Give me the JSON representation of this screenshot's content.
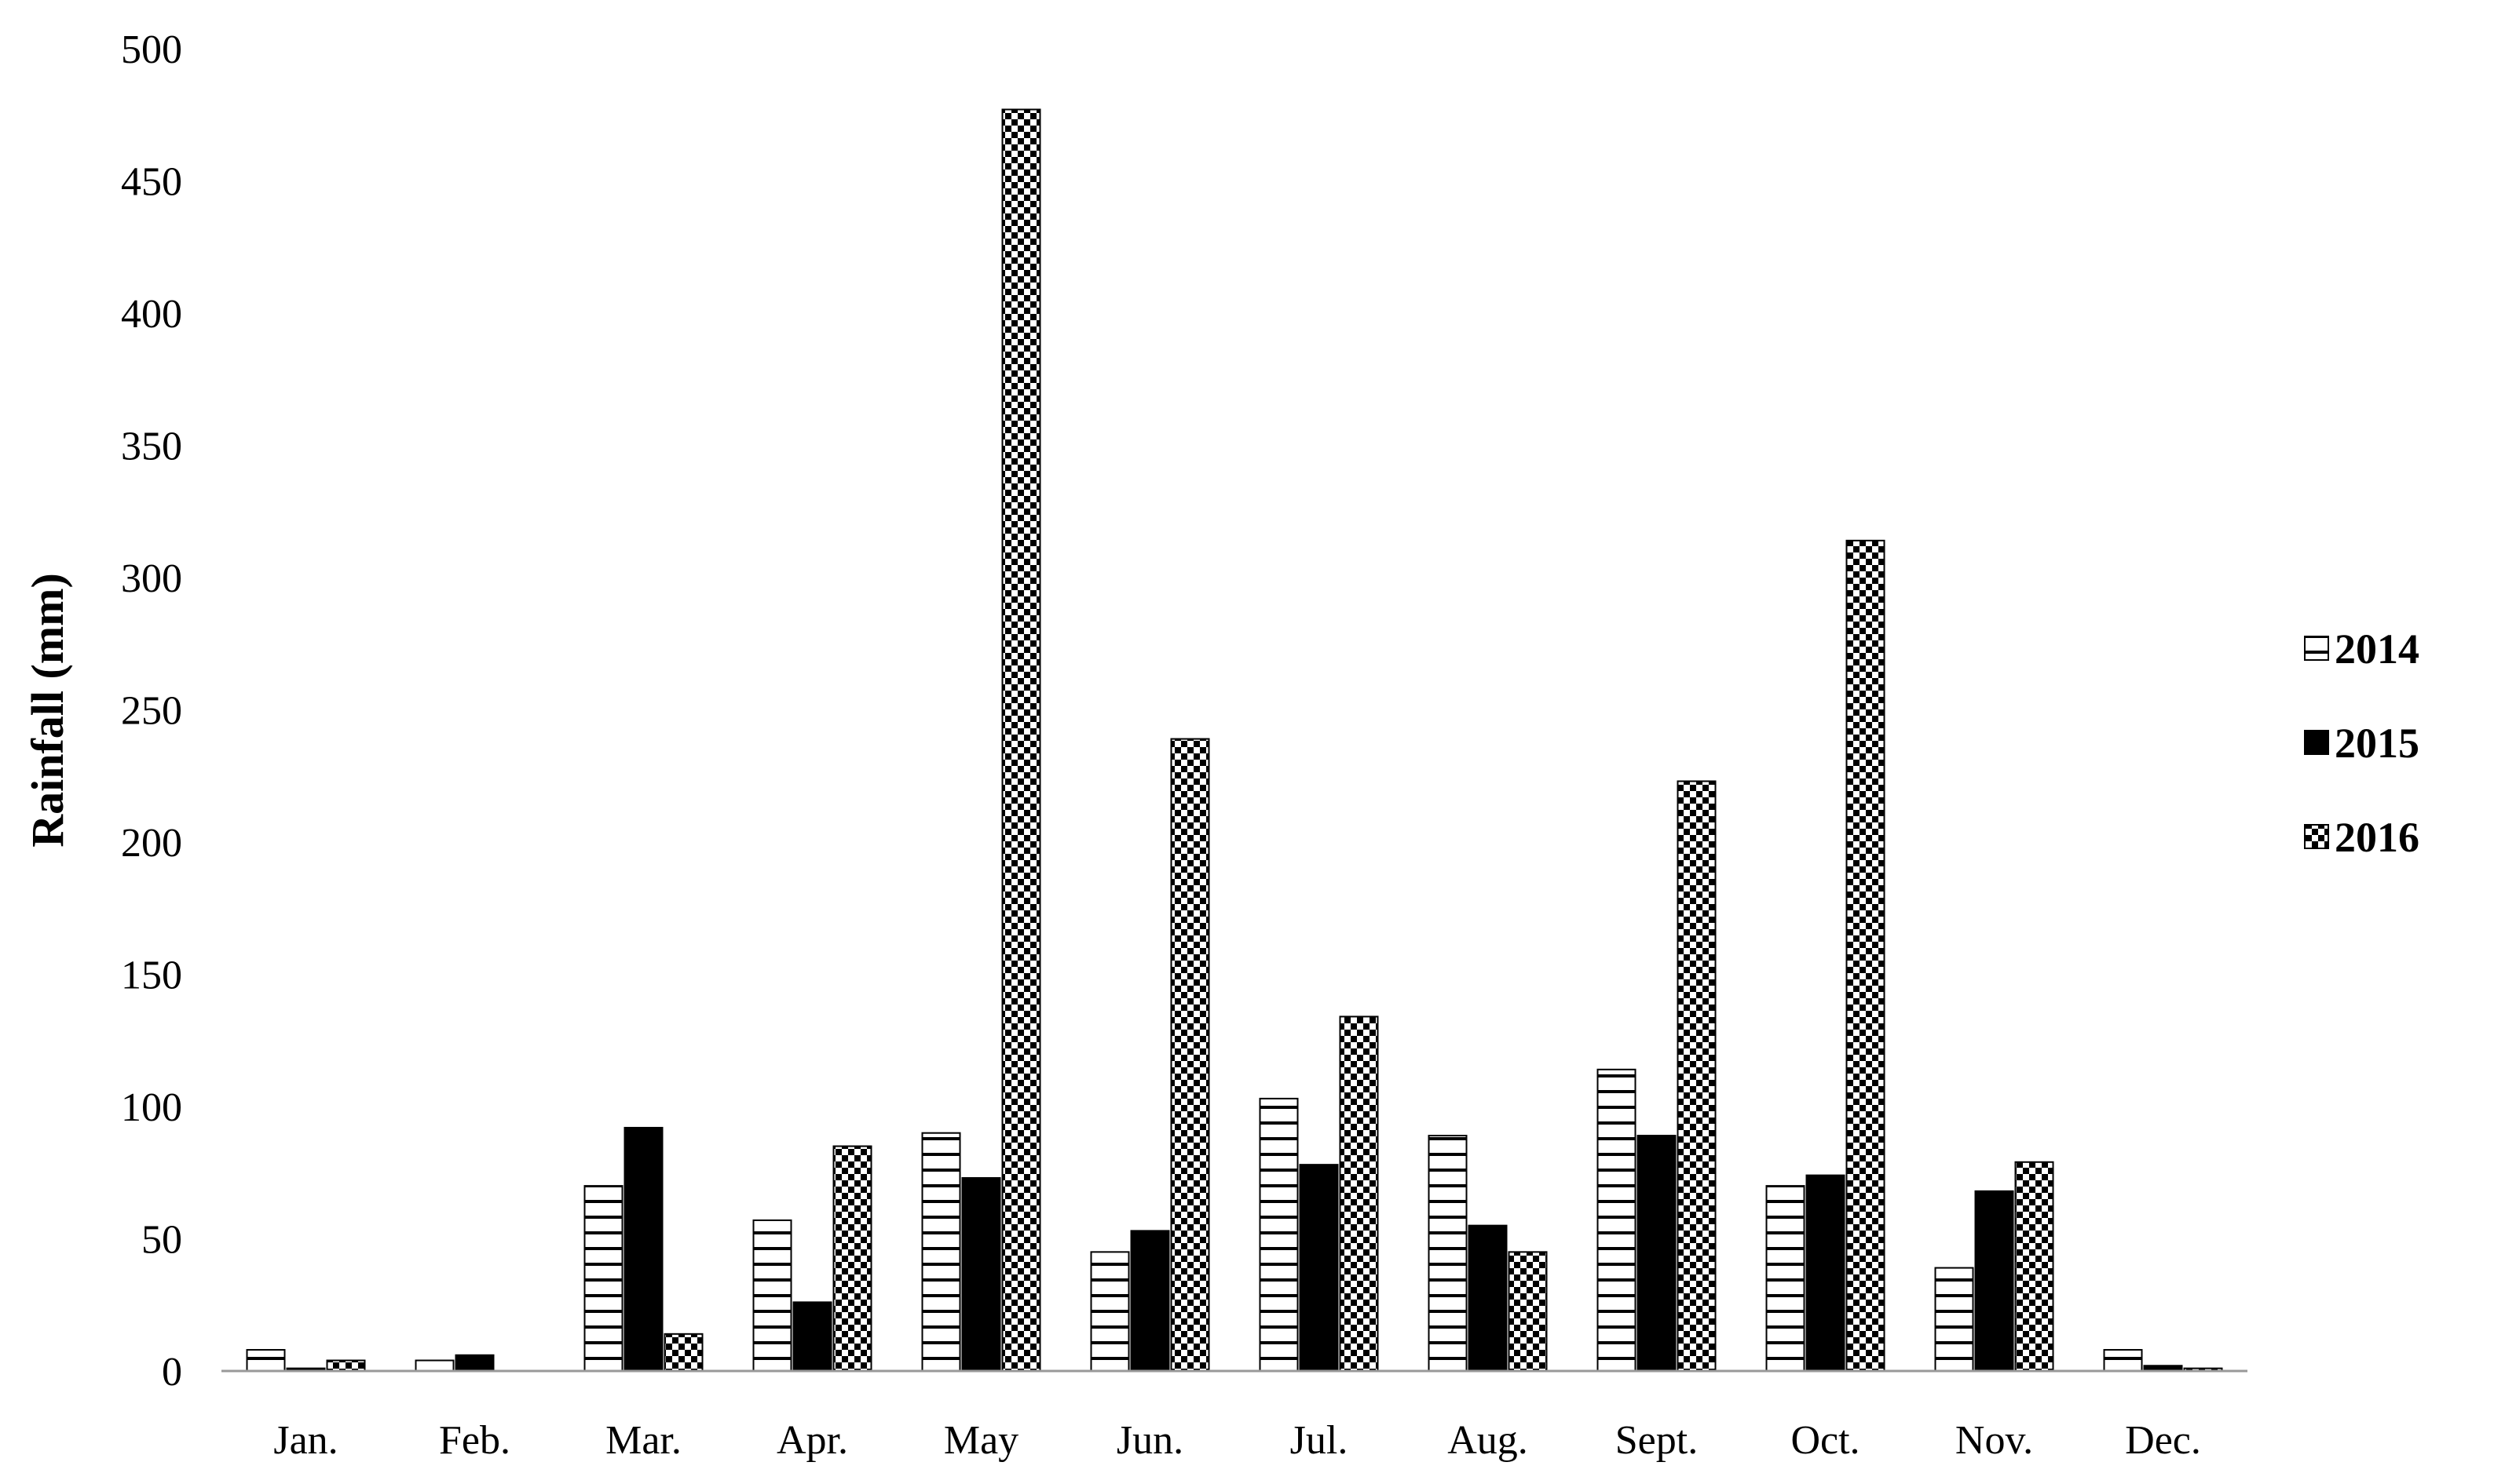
{
  "chart_data": {
    "type": "bar",
    "title": "",
    "xlabel": "",
    "ylabel": "Rainfall (mm)",
    "ylim": [
      0,
      500
    ],
    "yticks": [
      0,
      50,
      100,
      150,
      200,
      250,
      300,
      350,
      400,
      450,
      500
    ],
    "grid": false,
    "legend_position": "right",
    "categories": [
      "Jan.",
      "Feb.",
      "Mar.",
      "Apr.",
      "May",
      "Jun.",
      "Jul.",
      "Aug.",
      "Sept.",
      "Oct.",
      "Nov.",
      "Dec."
    ],
    "series": [
      {
        "name": "2014",
        "pattern": "horizontal-lines",
        "values": [
          8,
          4,
          70,
          57,
          90,
          45,
          103,
          89,
          114,
          70,
          39,
          8
        ]
      },
      {
        "name": "2015",
        "pattern": "solid-black",
        "values": [
          1,
          6,
          92,
          26,
          73,
          53,
          78,
          55,
          89,
          74,
          68,
          2
        ]
      },
      {
        "name": "2016",
        "pattern": "checkered",
        "values": [
          4,
          0,
          14,
          85,
          477,
          239,
          134,
          45,
          223,
          314,
          79,
          1
        ]
      }
    ],
    "colors": {
      "bar_stroke": "#000000",
      "bar_fill": "#ffffff",
      "solid": "#000000",
      "axis": "#999999"
    }
  }
}
